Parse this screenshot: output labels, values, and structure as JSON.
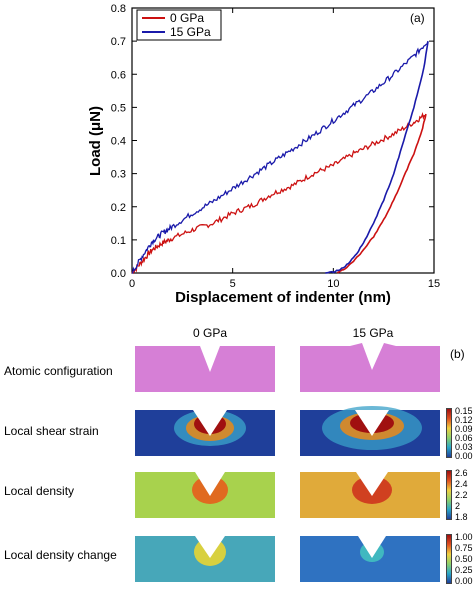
{
  "chart_data": {
    "type": "line",
    "panel_label": "(a)",
    "xlabel": "Displacement of indenter (nm)",
    "ylabel": "Load (μN)",
    "xlim": [
      0,
      15
    ],
    "ylim": [
      0,
      0.8
    ],
    "x_ticks": [
      "0",
      "5",
      "10",
      "15"
    ],
    "y_ticks": [
      "0.0",
      "0.1",
      "0.2",
      "0.3",
      "0.4",
      "0.5",
      "0.6",
      "0.7",
      "0.8"
    ],
    "legend_position": "top-left",
    "series": [
      {
        "name": "0 GPa",
        "color": "#cc1111",
        "loading": {
          "x": [
            0,
            0.5,
            1,
            1.5,
            2,
            3,
            4,
            5,
            6,
            7,
            8,
            9,
            10,
            11,
            12,
            13,
            14,
            14.6
          ],
          "y": [
            0,
            0.035,
            0.07,
            0.09,
            0.105,
            0.13,
            0.15,
            0.18,
            0.205,
            0.24,
            0.265,
            0.3,
            0.325,
            0.36,
            0.39,
            0.42,
            0.455,
            0.48
          ]
        },
        "unloading": {
          "x": [
            14.6,
            14.4,
            14.0,
            13.5,
            13.0,
            12.5,
            12.0,
            11.5,
            11.0,
            10.5,
            10.2
          ],
          "y": [
            0.48,
            0.43,
            0.36,
            0.29,
            0.22,
            0.16,
            0.11,
            0.07,
            0.035,
            0.01,
            0
          ]
        }
      },
      {
        "name": "15 GPa",
        "color": "#1a1aaa",
        "loading": {
          "x": [
            0,
            0.5,
            1,
            1.5,
            2,
            3,
            4,
            5,
            6,
            7,
            8,
            9,
            10,
            11,
            12,
            13,
            14,
            14.7
          ],
          "y": [
            0,
            0.05,
            0.095,
            0.12,
            0.14,
            0.18,
            0.215,
            0.255,
            0.295,
            0.335,
            0.375,
            0.415,
            0.46,
            0.505,
            0.55,
            0.6,
            0.655,
            0.7
          ]
        },
        "unloading": {
          "x": [
            14.7,
            14.5,
            14.0,
            13.5,
            13.0,
            12.5,
            12.0,
            11.5,
            11.0,
            10.5,
            10.0,
            9.6
          ],
          "y": [
            0.7,
            0.62,
            0.5,
            0.4,
            0.3,
            0.22,
            0.15,
            0.09,
            0.045,
            0.015,
            0.003,
            0
          ]
        }
      }
    ]
  },
  "panel_b": {
    "panel_label": "(b)",
    "columns": [
      "0 GPa",
      "15 GPa"
    ],
    "rows": [
      {
        "label": "Atomic configuration",
        "colorbar": null
      },
      {
        "label": "Local shear strain",
        "colorbar": [
          "0.15",
          "0.12",
          "0.09",
          "0.06",
          "0.03",
          "0.00"
        ]
      },
      {
        "label": "Local density",
        "colorbar": [
          "2.6",
          "2.4",
          "2.2",
          "2",
          "1.8"
        ]
      },
      {
        "label": "Local density change",
        "colorbar": [
          "1.00",
          "0.75",
          "0.50",
          "0.25",
          "0.00"
        ]
      }
    ]
  }
}
